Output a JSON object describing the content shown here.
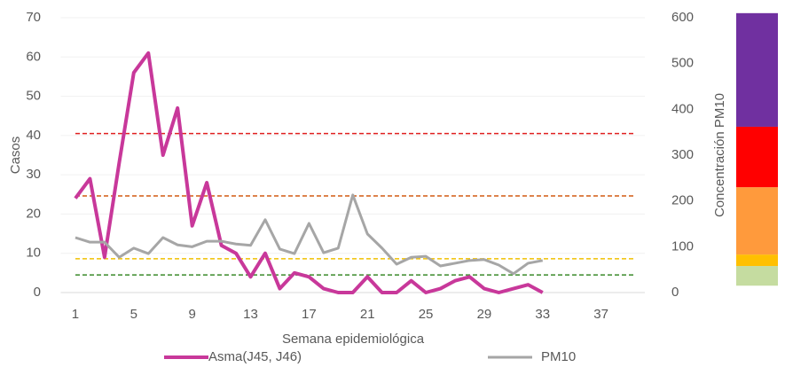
{
  "chart_data": {
    "type": "line",
    "x_label": "Semana epidemiológica",
    "y_label": "Casos",
    "y2_label": "Concentración PM10",
    "x": [
      1,
      2,
      3,
      4,
      5,
      6,
      7,
      8,
      9,
      10,
      11,
      12,
      13,
      14,
      15,
      16,
      17,
      18,
      19,
      20,
      21,
      22,
      23,
      24,
      25,
      26,
      27,
      28,
      29,
      30,
      31,
      32,
      33
    ],
    "series": [
      {
        "name": "Asma(J45, J46)",
        "color": "#c8389a",
        "axis": "y",
        "values": [
          24,
          29,
          9,
          33,
          56,
          61,
          35,
          47,
          17,
          28,
          12,
          10,
          4,
          10,
          1,
          5,
          4,
          1,
          0,
          0,
          4,
          0,
          0,
          3,
          0,
          1,
          3,
          4,
          1,
          0,
          1,
          2,
          0
        ]
      },
      {
        "name": "PM10",
        "color": "#a6a6a6",
        "axis": "y2",
        "values": [
          120,
          110,
          110,
          77,
          97,
          85,
          120,
          104,
          100,
          112,
          112,
          106,
          103,
          159,
          95,
          85,
          151,
          87,
          97,
          213,
          128,
          97,
          62,
          77,
          79,
          58,
          64,
          70,
          72,
          60,
          41,
          64,
          70
        ]
      }
    ],
    "reference_lines": [
      {
        "value": 40.5,
        "color": "#e02020"
      },
      {
        "value": 24.6,
        "color": "#d25a12"
      },
      {
        "value": 8.6,
        "color": "#f0c000"
      },
      {
        "value": 4.5,
        "color": "#3a8a2a"
      }
    ],
    "bands": [
      {
        "from": 15,
        "to": 58,
        "color": "#c5dca0"
      },
      {
        "from": 58,
        "to": 83,
        "color": "#ffc000"
      },
      {
        "from": 83,
        "to": 230,
        "color": "#ff9a3c"
      },
      {
        "from": 230,
        "to": 362,
        "color": "#ff0000"
      },
      {
        "from": 362,
        "to": 610,
        "color": "#7030a0"
      }
    ],
    "xlim": [
      0,
      40
    ],
    "xticks": [
      1,
      5,
      9,
      13,
      17,
      21,
      25,
      29,
      33,
      37
    ],
    "ylim": [
      0,
      70
    ],
    "yticks": [
      0,
      10,
      20,
      30,
      40,
      50,
      60,
      70
    ],
    "y2lim": [
      0,
      600
    ],
    "y2ticks": [
      0,
      100,
      200,
      300,
      400,
      500,
      600
    ],
    "grid": true,
    "legend": "bottom"
  }
}
